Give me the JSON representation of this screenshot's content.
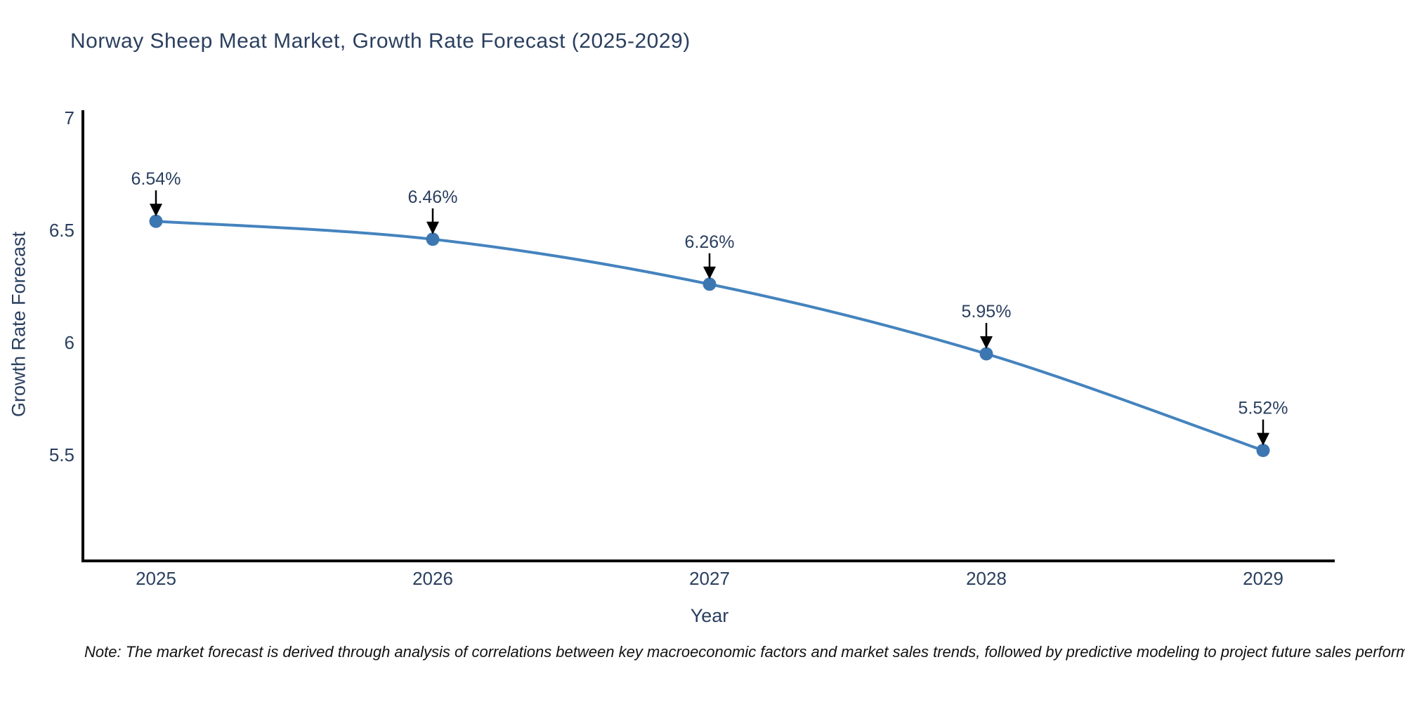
{
  "chart_data": {
    "type": "line",
    "title": "Norway Sheep Meat Market, Growth Rate Forecast (2025-2029)",
    "xlabel": "Year",
    "ylabel": "Growth Rate Forecast",
    "categories": [
      "2025",
      "2026",
      "2027",
      "2028",
      "2029"
    ],
    "series": [
      {
        "name": "Growth Rate Forecast",
        "values": [
          6.54,
          6.46,
          6.26,
          5.95,
          5.52
        ],
        "point_labels": [
          "6.54%",
          "6.46%",
          "6.26%",
          "5.95%",
          "5.52%"
        ]
      }
    ],
    "yticks": [
      7,
      6.5,
      6,
      5.5
    ],
    "ylim": [
      5.0,
      7.03
    ],
    "grid": false,
    "legend_position": "none",
    "marker_style": "circle-with-down-arrow-annotation",
    "colors": {
      "line": "#4483be",
      "marker": "#3d77b2",
      "axis": "#000000",
      "text": "#2a3f5f",
      "annotation_arrow": "#000000",
      "note_text": "#111111",
      "background": "#ffffff"
    },
    "note": "Note: The market forecast is derived through analysis of correlations between key macroeconomic factors and market sales trends, followed by predictive modeling to project future sales performance"
  }
}
